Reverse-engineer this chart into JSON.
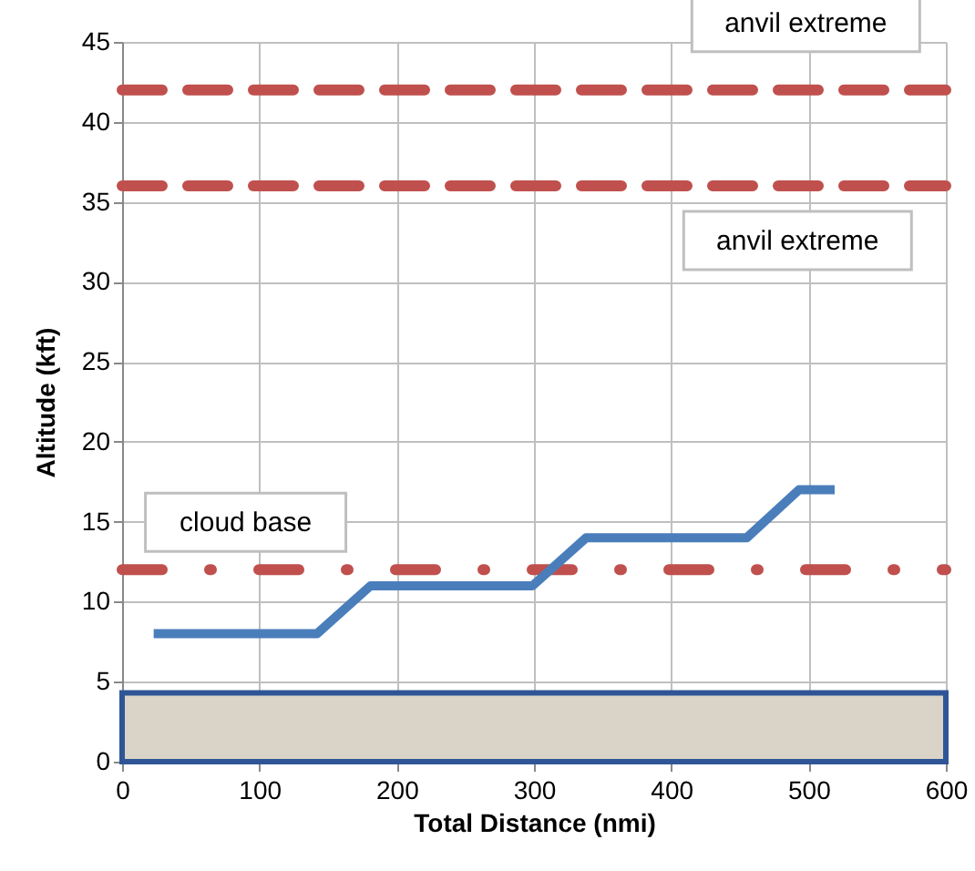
{
  "chart_data": {
    "type": "line",
    "xlabel": "Total Distance (nmi)",
    "ylabel": "Altitude (kft)",
    "x": [
      23,
      142,
      181,
      299,
      338,
      455,
      493,
      519
    ],
    "series": [
      {
        "color": "#4a7ebb",
        "values": [
          8,
          8,
          11,
          11,
          14,
          14,
          17,
          17
        ]
      }
    ],
    "xlim": [
      0,
      600
    ],
    "xticks": [
      0,
      100,
      200,
      300,
      400,
      500,
      600
    ],
    "ylim": [
      0,
      45
    ],
    "yticks": [
      0,
      5,
      10,
      15,
      20,
      25,
      30,
      35,
      40,
      45
    ],
    "grid": true,
    "marker": "none",
    "line_style": "solid",
    "ref_lines": [
      {
        "axis": "y",
        "value": 42,
        "label": "anvil extreme",
        "color": "#c0504d",
        "line_style": "dashed"
      },
      {
        "axis": "y",
        "value": 36,
        "label": "anvil extreme",
        "color": "#c0504d",
        "line_style": "dashed"
      },
      {
        "axis": "y",
        "value": 12,
        "label": "cloud base",
        "color": "#c0504d",
        "line_style": "dotted"
      }
    ],
    "bands": [
      {
        "axis": "y",
        "from": 0,
        "to": 4.3,
        "color": "#d9d4c7"
      }
    ]
  }
}
